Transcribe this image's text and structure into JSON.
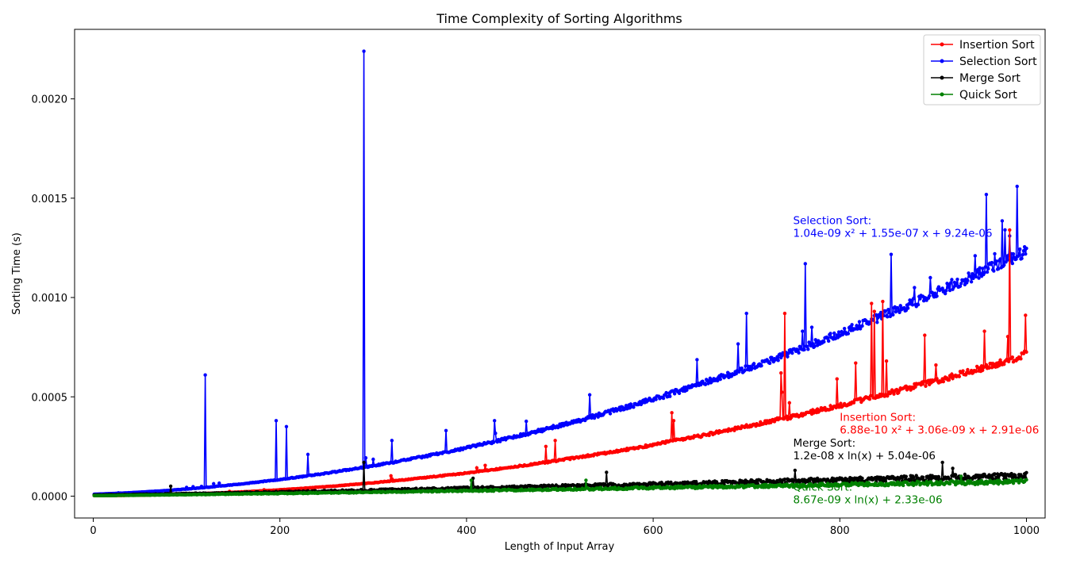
{
  "chart_data": {
    "type": "line",
    "title": "Time Complexity of Sorting Algorithms",
    "xlabel": "Length of Input Array",
    "ylabel": "Sorting Time (s)",
    "xlim": [
      -20,
      1020
    ],
    "ylim": [
      -0.00011,
      0.00235
    ],
    "x_ticks": [
      0,
      200,
      400,
      600,
      800,
      1000
    ],
    "y_ticks": [
      0.0,
      0.0005,
      0.001,
      0.0015,
      0.002
    ],
    "y_tick_labels": [
      "0.0000",
      "0.0005",
      "0.0010",
      "0.0015",
      "0.0020"
    ],
    "legend_position": "top-right",
    "grid": false,
    "x_range": [
      1,
      1000
    ],
    "series": [
      {
        "name": "Insertion Sort",
        "color": "#ff0000",
        "fit": {
          "a2": 6.88e-10,
          "a1": 3.06e-09,
          "a0": 2.91e-06,
          "kind": "quadratic"
        },
        "spikes": [
          [
            485,
            0.00025
          ],
          [
            495,
            0.00028
          ],
          [
            620,
            0.00042
          ],
          [
            622,
            0.00038
          ],
          [
            737,
            0.00062
          ],
          [
            741,
            0.00092
          ],
          [
            746,
            0.00047
          ],
          [
            797,
            0.00059
          ],
          [
            817,
            0.00067
          ],
          [
            834,
            0.00097
          ],
          [
            837,
            0.00093
          ],
          [
            846,
            0.00098
          ],
          [
            850,
            0.00068
          ],
          [
            891,
            0.00081
          ],
          [
            903,
            0.00066
          ],
          [
            955,
            0.00083
          ],
          [
            982,
            0.00134
          ],
          [
            998,
            0.00073
          ]
        ]
      },
      {
        "name": "Selection Sort",
        "color": "#0000ff",
        "fit": {
          "a2": 1.04e-09,
          "a1": 1.55e-07,
          "a0": 9.24e-06,
          "kind": "quadratic"
        },
        "spikes": [
          [
            120,
            0.00061
          ],
          [
            196,
            0.00038
          ],
          [
            207,
            0.00035
          ],
          [
            230,
            0.00021
          ],
          [
            290,
            0.00224
          ],
          [
            320,
            0.00028
          ],
          [
            378,
            0.00033
          ],
          [
            430,
            0.00038
          ],
          [
            532,
            0.00051
          ],
          [
            700,
            0.00092
          ],
          [
            760,
            0.00083
          ],
          [
            763,
            0.00117
          ],
          [
            770,
            0.00085
          ],
          [
            880,
            0.00105
          ],
          [
            897,
            0.0011
          ],
          [
            920,
            0.00109
          ],
          [
            945,
            0.00121
          ],
          [
            966,
            0.00122
          ],
          [
            982,
            0.00131
          ]
        ]
      },
      {
        "name": "Merge Sort",
        "color": "#000000",
        "fit": {
          "a1": 1.2e-08,
          "a0": 5.04e-06,
          "kind": "nlogn"
        },
        "spikes": [
          [
            83,
            5e-05
          ],
          [
            290,
            0.00017
          ],
          [
            407,
            9e-05
          ],
          [
            550,
            0.00012
          ],
          [
            752,
            0.00013
          ],
          [
            910,
            0.00017
          ],
          [
            921,
            0.00014
          ]
        ]
      },
      {
        "name": "Quick Sort",
        "color": "#008000",
        "fit": {
          "a1": 8.67e-09,
          "a0": 2.33e-06,
          "kind": "nlogn"
        },
        "spikes": [
          [
            405,
            8e-05
          ],
          [
            528,
            8e-05
          ],
          [
            930,
            0.0001
          ]
        ]
      }
    ],
    "annotations": [
      {
        "name": "Selection Sort",
        "label": "Selection Sort:",
        "formula": "1.04e-09 x² + 1.55e-07 x + 9.24e-06",
        "color": "#0000ff",
        "x": 750,
        "y": 0.00137
      },
      {
        "name": "Insertion Sort",
        "label": "Insertion Sort:",
        "formula": "6.88e-10 x² + 3.06e-09 x + 2.91e-06",
        "color": "#ff0000",
        "x": 800,
        "y": 0.00038
      },
      {
        "name": "Merge Sort",
        "label": "Merge Sort:",
        "formula": "1.2e-08 x ln(x) + 5.04e-06",
        "color": "#000000",
        "x": 750,
        "y": 0.00025
      },
      {
        "name": "Quick Sort",
        "label": "Quick Sort:",
        "formula": "8.67e-09 x ln(x) + 2.33e-06",
        "color": "#008000",
        "x": 750,
        "y": 2.8e-05
      }
    ]
  }
}
